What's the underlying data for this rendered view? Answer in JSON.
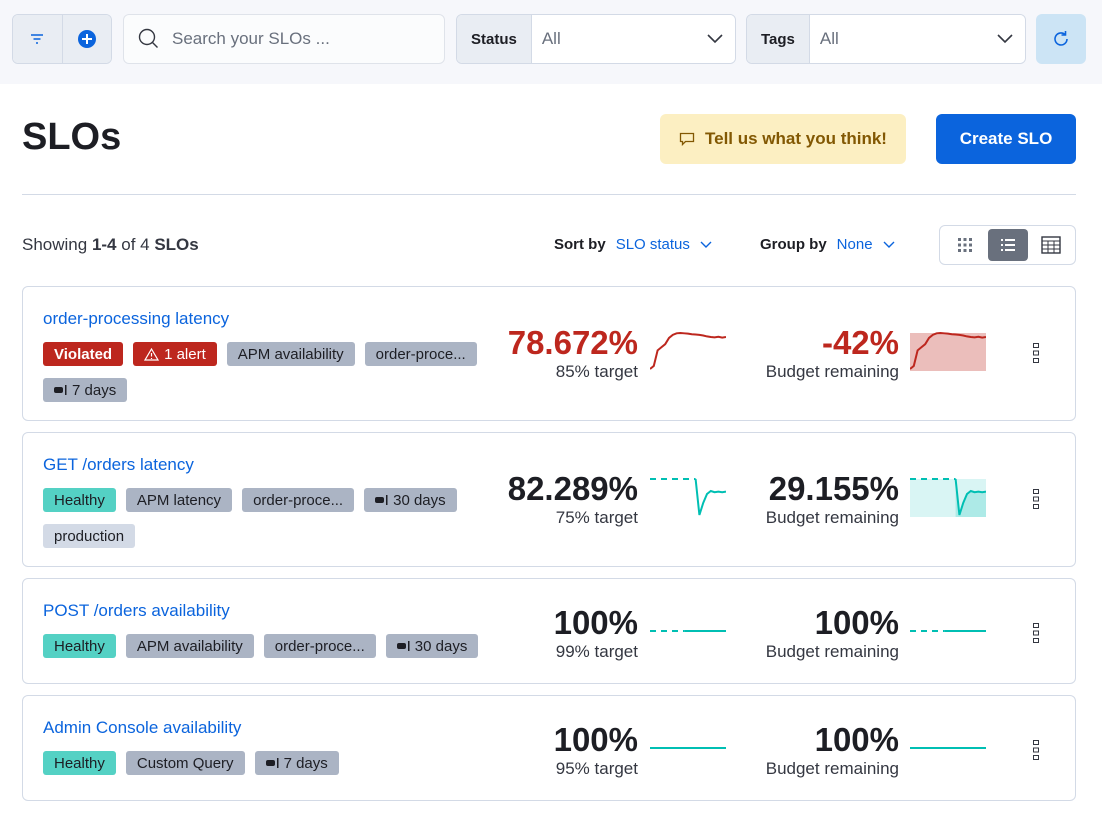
{
  "toolbar": {
    "search_placeholder": "Search your SLOs ...",
    "status_label": "Status",
    "status_value": "All",
    "tags_label": "Tags",
    "tags_value": "All"
  },
  "header": {
    "title": "SLOs",
    "feedback_label": "Tell us what you think!",
    "create_label": "Create SLO"
  },
  "list": {
    "showing_prefix": "Showing ",
    "showing_range": "1-4",
    "showing_of": " of 4 ",
    "showing_unit": "SLOs",
    "sort_label": "Sort by",
    "sort_value": "SLO status",
    "group_label": "Group by",
    "group_value": "None",
    "view_modes": [
      "card-view",
      "list-view",
      "compact-view"
    ],
    "active_view": "list-view"
  },
  "colors": {
    "violated": "#bd271e",
    "healthy": "#54d1c4",
    "link": "#0b64dd",
    "spark_healthy": "#00bfb3"
  },
  "slos": [
    {
      "name": "order-processing latency",
      "status": "Violated",
      "badges": [
        {
          "text": "Violated",
          "kind": "violated"
        },
        {
          "text": "1 alert",
          "kind": "alert"
        },
        {
          "text": "APM availability",
          "kind": "tag"
        },
        {
          "text": "order-proce...",
          "kind": "tag"
        },
        {
          "text": "7 days",
          "kind": "window"
        }
      ],
      "sli": "78.672%",
      "target": "85% target",
      "budget": "-42%",
      "budget_label": "Budget remaining",
      "sli_trend": [
        70,
        71,
        76,
        77,
        78,
        80,
        81,
        81.5,
        81.6,
        81.5,
        81.4,
        81.2,
        81.1,
        81,
        80.8,
        80.5,
        80.3,
        80.2,
        80.4,
        80.1,
        80.3
      ],
      "budget_trend": [
        70,
        71,
        76,
        77,
        78,
        80,
        81,
        81.5,
        81.6,
        81.5,
        81.4,
        81.2,
        81.1,
        81,
        80.8,
        80.5,
        80.3,
        80.2,
        80.4,
        80.1,
        80.3
      ]
    },
    {
      "name": "GET /orders latency",
      "status": "Healthy",
      "badges": [
        {
          "text": "Healthy",
          "kind": "healthy"
        },
        {
          "text": "APM latency",
          "kind": "tag"
        },
        {
          "text": "order-proce...",
          "kind": "tag"
        },
        {
          "text": "30 days",
          "kind": "window"
        },
        {
          "text": "production",
          "kind": "light"
        }
      ],
      "sli": "82.289%",
      "target": "75% target",
      "budget": "29.155%",
      "budget_label": "Budget remaining",
      "sli_trend": [
        null,
        null,
        null,
        null,
        null,
        null,
        null,
        null,
        null,
        null,
        null,
        null,
        100,
        40,
        60,
        75,
        80,
        78,
        79,
        78,
        79
      ],
      "budget_trend": [
        null,
        null,
        null,
        null,
        null,
        null,
        null,
        null,
        null,
        null,
        null,
        null,
        100,
        40,
        60,
        75,
        80,
        78,
        79,
        78,
        79
      ]
    },
    {
      "name": "POST /orders availability",
      "status": "Healthy",
      "badges": [
        {
          "text": "Healthy",
          "kind": "healthy"
        },
        {
          "text": "APM availability",
          "kind": "tag"
        },
        {
          "text": "order-proce...",
          "kind": "tag"
        },
        {
          "text": "30 days",
          "kind": "window"
        }
      ],
      "sli": "100%",
      "target": "99% target",
      "budget": "100%",
      "budget_label": "Budget remaining",
      "sli_trend": [
        null,
        null,
        null,
        null,
        null,
        null,
        null,
        null,
        null,
        100,
        100,
        100,
        100,
        100,
        100,
        100,
        100,
        100,
        100,
        100,
        100
      ],
      "budget_trend": [
        null,
        null,
        null,
        null,
        null,
        null,
        null,
        null,
        null,
        100,
        100,
        100,
        100,
        100,
        100,
        100,
        100,
        100,
        100,
        100,
        100
      ]
    },
    {
      "name": "Admin Console availability",
      "status": "Healthy",
      "badges": [
        {
          "text": "Healthy",
          "kind": "healthy"
        },
        {
          "text": "Custom Query",
          "kind": "tag"
        },
        {
          "text": "7 days",
          "kind": "window"
        }
      ],
      "sli": "100%",
      "target": "95% target",
      "budget": "100%",
      "budget_label": "Budget remaining",
      "sli_trend": [
        100,
        100,
        100,
        100,
        100,
        100,
        100,
        100,
        100,
        100,
        100,
        100,
        100,
        100,
        100,
        100,
        100,
        100,
        100,
        100,
        100
      ],
      "budget_trend": [
        100,
        100,
        100,
        100,
        100,
        100,
        100,
        100,
        100,
        100,
        100,
        100,
        100,
        100,
        100,
        100,
        100,
        100,
        100,
        100,
        100
      ]
    }
  ]
}
